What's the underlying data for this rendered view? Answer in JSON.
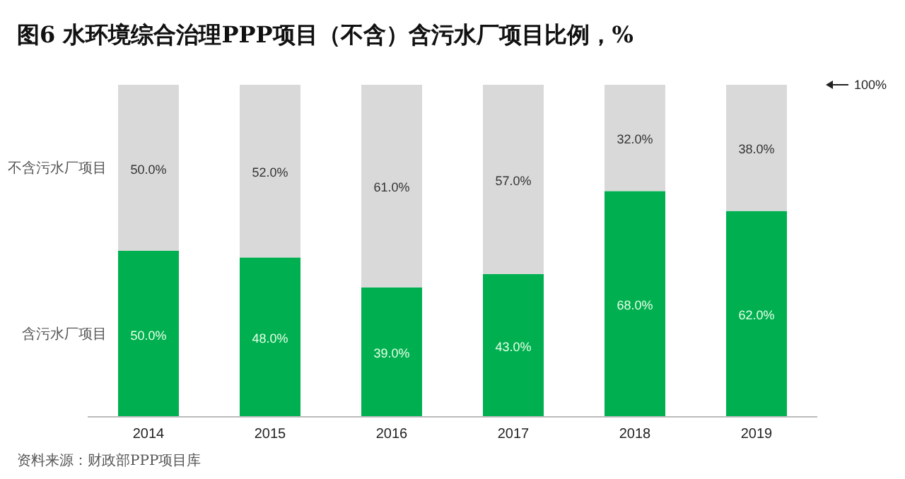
{
  "chart_data": {
    "type": "bar",
    "title": "图6 水环境综合治理PPP项目（不含）含污水厂项目比例，%",
    "categories": [
      "2014",
      "2015",
      "2016",
      "2017",
      "2018",
      "2019"
    ],
    "stacked": true,
    "series": [
      {
        "name": "含污水厂项目",
        "color": "#00b050",
        "values": [
          50,
          48,
          39,
          43,
          68,
          62
        ],
        "value_labels": [
          "50.0%",
          "48.0%",
          "39.0%",
          "43.0%",
          "68.0%",
          "62.0%"
        ]
      },
      {
        "name": "不含污水厂项目",
        "color": "#d9d9d9",
        "values": [
          50,
          52,
          61,
          57,
          32,
          38
        ],
        "value_labels": [
          "50.0%",
          "52.0%",
          "61.0%",
          "57.0%",
          "32.0%",
          "38.0%"
        ]
      }
    ],
    "tick_labels": "x",
    "legend": "left",
    "annotations": [
      "100%",
      "资料来源：财政部PPP项目库"
    ]
  }
}
